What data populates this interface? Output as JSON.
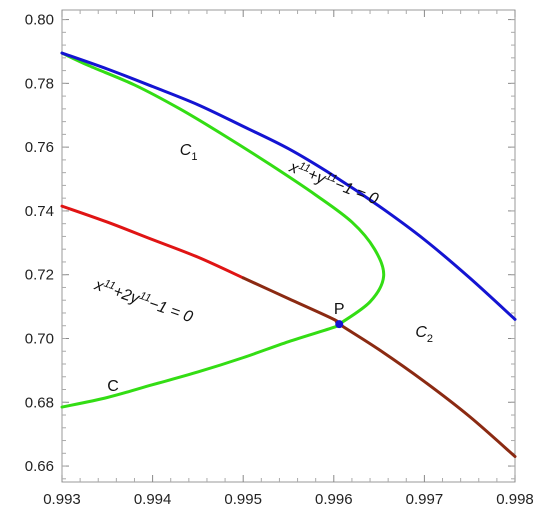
{
  "chart_data": {
    "type": "line",
    "xlim": [
      0.993,
      0.998
    ],
    "ylim": [
      0.655,
      0.803
    ],
    "x_ticks": [
      "0.993",
      "0.994",
      "0.995",
      "0.996",
      "0.997",
      "0.998"
    ],
    "x_tick_values": [
      0.993,
      0.994,
      0.995,
      0.996,
      0.997,
      0.998
    ],
    "y_ticks": [
      "0.66",
      "0.68",
      "0.70",
      "0.72",
      "0.74",
      "0.76",
      "0.78",
      "0.80"
    ],
    "y_tick_values": [
      0.66,
      0.68,
      0.7,
      0.72,
      0.74,
      0.76,
      0.78,
      0.8
    ],
    "grid": false,
    "series": [
      {
        "color": "#1414d2",
        "x": [
          0.993,
          0.9935,
          0.994,
          0.9945,
          0.995,
          0.9955,
          0.996,
          0.9965,
          0.997,
          0.9975,
          0.998
        ],
        "y": [
          0.7895,
          0.7845,
          0.779,
          0.7733,
          0.7665,
          0.7595,
          0.751,
          0.7415,
          0.731,
          0.719,
          0.706
        ]
      },
      {
        "color": "#e01414",
        "x": [
          0.993,
          0.9935,
          0.994,
          0.9945,
          0.995
        ],
        "y": [
          0.7415,
          0.7365,
          0.731,
          0.7255,
          0.719
        ]
      },
      {
        "color": "#8b2a12",
        "x": [
          0.995,
          0.9955,
          0.996,
          0.99606,
          0.9965,
          0.997,
          0.9975,
          0.998
        ],
        "y": [
          0.719,
          0.7125,
          0.706,
          0.7045,
          0.6965,
          0.6865,
          0.6755,
          0.663
        ]
      },
      {
        "color": "#33dd14",
        "x": [
          0.993,
          0.9935,
          0.994,
          0.9945,
          0.995,
          0.9955,
          0.996,
          0.99606,
          0.9964,
          0.99655,
          0.99645,
          0.9962,
          0.9958,
          0.9953,
          0.9948,
          0.9943,
          0.9938,
          0.9933,
          0.993
        ],
        "y": [
          0.6785,
          0.6815,
          0.6855,
          0.6895,
          0.694,
          0.699,
          0.7035,
          0.7045,
          0.7115,
          0.7195,
          0.728,
          0.7365,
          0.745,
          0.7545,
          0.7635,
          0.772,
          0.7795,
          0.7855,
          0.7895
        ]
      }
    ],
    "point": {
      "label": "P",
      "x": 0.99606,
      "y": 0.7045,
      "color": "#1414d2"
    },
    "annotations": [
      {
        "id": "blue-eq",
        "kind": "curve",
        "x": 0.9955,
        "y": 0.7525,
        "angle": 21,
        "base": "x",
        "sup1": "11",
        "mid": "+y",
        "sup2": "11",
        "tail": "−1 = 0"
      },
      {
        "id": "red-eq",
        "kind": "curve",
        "x": 0.99335,
        "y": 0.7155,
        "angle": 19,
        "base": "x",
        "sup1": "11",
        "mid": "+2y",
        "sup2": "11",
        "tail": "−1 = 0"
      },
      {
        "id": "c1",
        "kind": "sub",
        "x": 0.9943,
        "y": 0.7575,
        "base": "C",
        "sub": "1"
      },
      {
        "id": "c2",
        "kind": "sub",
        "x": 0.9969,
        "y": 0.7005,
        "base": "C",
        "sub": "2"
      },
      {
        "id": "c",
        "kind": "plain",
        "x": 0.9935,
        "y": 0.6835,
        "text": "C"
      }
    ]
  }
}
